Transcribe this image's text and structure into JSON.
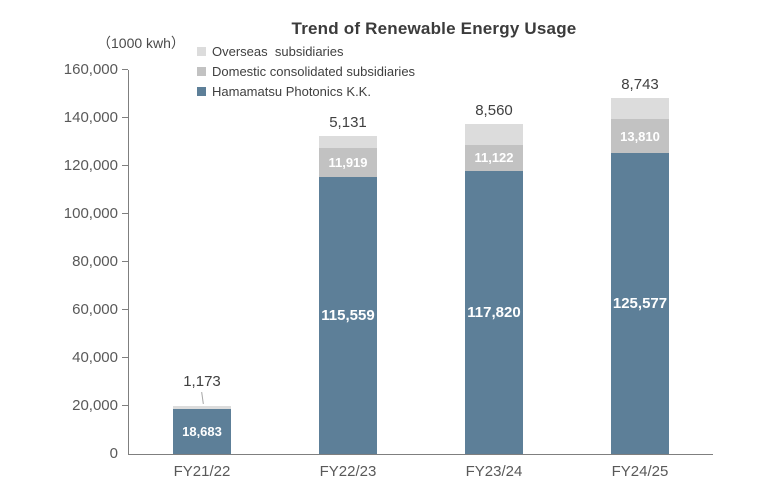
{
  "chart": {
    "title": "Trend of Renewable Energy Usage",
    "unit_label": "（1000 kwh）"
  },
  "chart_data": {
    "type": "bar",
    "stacked": true,
    "title": "Trend of Renewable Energy Usage",
    "unit_label": "（1000 kwh）",
    "categories": [
      "FY21/22",
      "FY22/23",
      "FY23/24",
      "FY24/25"
    ],
    "series": [
      {
        "name": "Hamamatsu Photonics K.K.",
        "color": "#5d7f98",
        "values": [
          18683,
          115559,
          117820,
          125577
        ],
        "label_position": "inside"
      },
      {
        "name": "Domestic consolidated subsidiaries",
        "color": "#c2c2c2",
        "values": [
          null,
          11919,
          11122,
          13810
        ],
        "label_position": "inside"
      },
      {
        "name": "Overseas  subsidiaries",
        "color": "#dcdcdc",
        "values": [
          1173,
          5131,
          8560,
          8743
        ],
        "label_position": "outside",
        "leader_line_categories": [
          0
        ]
      }
    ],
    "ylim": [
      0,
      160000
    ],
    "ytick_step": 20000,
    "grid": false,
    "legend_position": "top-left-inside",
    "legend_order": "reverse-of-stack"
  },
  "colors": {
    "axis": "#7f7f7f",
    "tick_text": "#595959",
    "title_text": "#3b3b3b",
    "outside_label_text": "#404040",
    "inside_label_text": "#ffffff",
    "background": "#ffffff"
  }
}
